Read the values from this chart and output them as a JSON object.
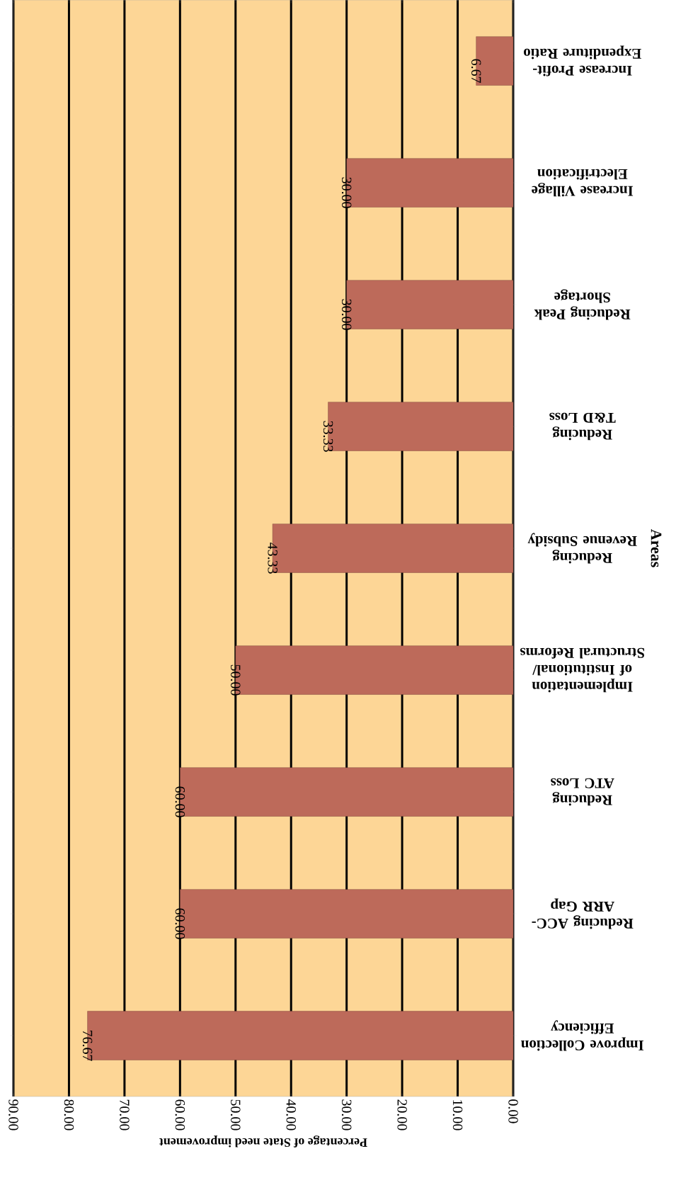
{
  "chart_data": {
    "type": "bar",
    "orientation": "horizontal",
    "xlabel": "Percentage of State need improvement",
    "ylabel": "Areas",
    "categories": [
      "Increase Profit-Expenditure Ratio",
      "Increase  Village Electrification",
      "Reducing Peak Shortage",
      "Reducing T&D Loss",
      "Reducing Revenue Subsidy",
      "Implementation of Institutional/ Structural Reforms",
      "Reducing ATC Loss",
      "Reducing ACC-ARR Gap",
      "Improve Collection Efficiency"
    ],
    "values": [
      6.67,
      30.0,
      30.0,
      33.33,
      43.33,
      50.0,
      60.0,
      60.0,
      76.67
    ],
    "value_labels": [
      "6.67",
      "30.00",
      "30.00",
      "33.33",
      "43.33",
      "50.00",
      "60.00",
      "60.00",
      "76.67"
    ],
    "color": "#bd6a5a",
    "xlim": [
      90,
      0
    ],
    "xticks": [
      {
        "value": 90,
        "label": "90.00"
      },
      {
        "value": 80,
        "label": "80.00"
      },
      {
        "value": 70,
        "label": "70.00"
      },
      {
        "value": 60,
        "label": "60.00"
      },
      {
        "value": 50,
        "label": "50.00"
      },
      {
        "value": 40,
        "label": "40.00"
      },
      {
        "value": 30,
        "label": "30.00"
      },
      {
        "value": 20,
        "label": "20.00"
      },
      {
        "value": 10,
        "label": "10.00"
      },
      {
        "value": 0,
        "label": "0.00"
      }
    ],
    "grid": "x"
  }
}
